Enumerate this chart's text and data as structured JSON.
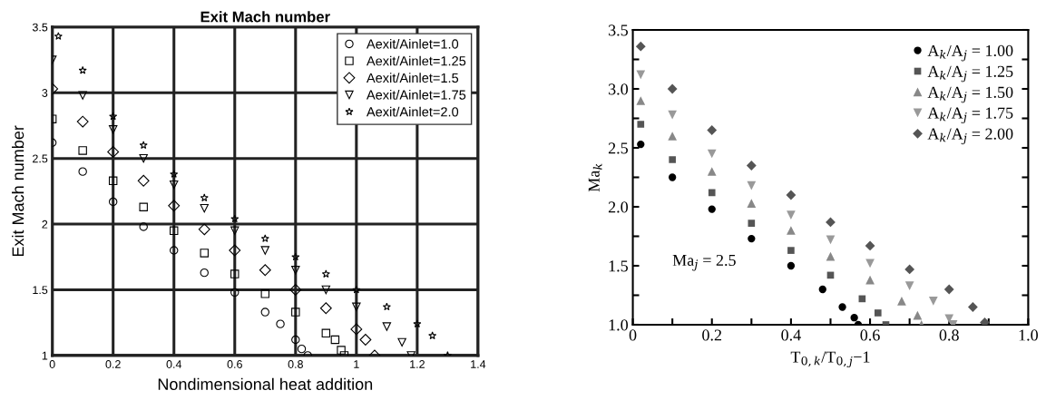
{
  "chart_data": [
    {
      "type": "scatter",
      "title": "Exit Mach number",
      "xlabel": "Nondimensional heat addition",
      "ylabel": "Exit Mach number",
      "xlim": [
        0,
        1.4
      ],
      "xticks": [
        0,
        0.2,
        0.4,
        0.6,
        0.8,
        1,
        1.2,
        1.4
      ],
      "ylim": [
        1,
        3.5
      ],
      "yticks": [
        1,
        1.5,
        2,
        2.5,
        3,
        3.5
      ],
      "grid": true,
      "legend": "top right",
      "series": [
        {
          "name": "Aexit/Ainlet=1.0",
          "color": "#000000",
          "marker": "circle",
          "x": [
            0,
            0.1,
            0.2,
            0.3,
            0.4,
            0.5,
            0.6,
            0.7,
            0.75,
            0.8,
            0.82,
            0.84
          ],
          "values": [
            2.62,
            2.4,
            2.17,
            1.98,
            1.8,
            1.63,
            1.48,
            1.33,
            1.24,
            1.12,
            1.05,
            1.0
          ]
        },
        {
          "name": "Aexit/Ainlet=1.25",
          "color": "#000000",
          "marker": "square",
          "x": [
            0,
            0.1,
            0.2,
            0.3,
            0.4,
            0.5,
            0.6,
            0.7,
            0.8,
            0.9,
            0.93,
            0.95,
            0.96
          ],
          "values": [
            2.8,
            2.56,
            2.33,
            2.13,
            1.95,
            1.78,
            1.62,
            1.47,
            1.33,
            1.17,
            1.12,
            1.04,
            1.0
          ]
        },
        {
          "name": "Aexit/Ainlet=1.5",
          "color": "#000000",
          "marker": "diamond",
          "x": [
            0,
            0.1,
            0.2,
            0.3,
            0.4,
            0.5,
            0.6,
            0.7,
            0.8,
            0.9,
            1.0,
            1.03,
            1.06
          ],
          "values": [
            3.03,
            2.78,
            2.55,
            2.33,
            2.14,
            1.96,
            1.8,
            1.65,
            1.5,
            1.36,
            1.2,
            1.12,
            1.0
          ]
        },
        {
          "name": "Aexit/Ainlet=1.75",
          "color": "#000000",
          "marker": "triangle_down",
          "x": [
            0,
            0.1,
            0.2,
            0.3,
            0.4,
            0.5,
            0.6,
            0.7,
            0.8,
            0.9,
            1.0,
            1.1,
            1.15,
            1.18
          ],
          "values": [
            3.25,
            2.98,
            2.72,
            2.5,
            2.3,
            2.12,
            1.95,
            1.8,
            1.65,
            1.5,
            1.37,
            1.22,
            1.1,
            1.0
          ]
        },
        {
          "name": "Aexit/Ainlet=2.0",
          "color": "#000000",
          "marker": "star",
          "x": [
            0.02,
            0.1,
            0.2,
            0.3,
            0.4,
            0.5,
            0.6,
            0.7,
            0.8,
            0.9,
            1.0,
            1.1,
            1.2,
            1.25,
            1.3
          ],
          "values": [
            3.43,
            3.17,
            2.82,
            2.6,
            2.38,
            2.2,
            2.04,
            1.89,
            1.75,
            1.62,
            1.5,
            1.37,
            1.24,
            1.15,
            1.0
          ]
        }
      ]
    },
    {
      "type": "scatter",
      "xlabel": "T$_{0,k}$/T$_{0,j}$−1",
      "ylabel": "Ma$_{k}$",
      "xlim": [
        0,
        1.0
      ],
      "xticks": [
        0,
        {
          "value": 0.1,
          "label": null
        },
        0.2,
        {
          "value": 0.3,
          "label": null
        },
        0.4,
        {
          "value": 0.5,
          "label": null
        },
        0.6,
        {
          "value": 0.7,
          "label": null
        },
        0.8,
        {
          "value": 0.9,
          "label": null
        },
        {
          "value": 1.0,
          "label": "1.0"
        }
      ],
      "ylim": [
        1,
        3.5
      ],
      "yticks": [
        {
          "value": 1,
          "label": "1.0"
        },
        {
          "value": 1.25,
          "label": null
        },
        1.5,
        {
          "value": 1.75,
          "label": null
        },
        {
          "value": 2,
          "label": "2.0"
        },
        {
          "value": 2.25,
          "label": null
        },
        2.5,
        {
          "value": 2.75,
          "label": null
        },
        {
          "value": 3,
          "label": "3.0"
        },
        {
          "value": 3.25,
          "label": null
        },
        3.5
      ],
      "grid": false,
      "legend": "top right",
      "annotations": [
        "Ma$_{j}$ = 2.5"
      ],
      "series": [
        {
          "name": "A$_{k}$/A$_{j}$ = 1.00",
          "color": "#000000",
          "marker": "circle",
          "x": [
            0.02,
            0.1,
            0.2,
            0.3,
            0.4,
            0.48,
            0.53,
            0.56,
            0.57
          ],
          "values": [
            2.53,
            2.25,
            1.98,
            1.73,
            1.5,
            1.3,
            1.15,
            1.06,
            1.0
          ]
        },
        {
          "name": "A$_{k}$/A$_{j}$ = 1.25",
          "color": "#555555",
          "marker": "square",
          "x": [
            0.02,
            0.1,
            0.2,
            0.3,
            0.4,
            0.5,
            0.58,
            0.62,
            0.64
          ],
          "values": [
            2.7,
            2.4,
            2.12,
            1.86,
            1.63,
            1.42,
            1.22,
            1.1,
            1.0
          ]
        },
        {
          "name": "A$_{k}$/A$_{j}$ = 1.50",
          "color": "#888888",
          "marker": "triangle",
          "x": [
            0.02,
            0.1,
            0.2,
            0.3,
            0.4,
            0.5,
            0.6,
            0.68,
            0.72,
            0.73
          ],
          "values": [
            2.9,
            2.6,
            2.3,
            2.03,
            1.8,
            1.58,
            1.38,
            1.2,
            1.08,
            1.0
          ]
        },
        {
          "name": "A$_{k}$/A$_{j}$ = 1.75",
          "color": "#999999",
          "marker": "triangle_down",
          "x": [
            0.02,
            0.1,
            0.2,
            0.3,
            0.4,
            0.5,
            0.6,
            0.7,
            0.76,
            0.8,
            0.81
          ],
          "values": [
            3.12,
            2.78,
            2.45,
            2.18,
            1.93,
            1.72,
            1.52,
            1.33,
            1.2,
            1.05,
            1.0
          ]
        },
        {
          "name": "A$_{k}$/A$_{j}$ = 2.00",
          "color": "#555555",
          "marker": "diamond",
          "x": [
            0.02,
            0.1,
            0.2,
            0.3,
            0.4,
            0.5,
            0.6,
            0.7,
            0.8,
            0.86,
            0.89
          ],
          "values": [
            3.36,
            3.0,
            2.65,
            2.35,
            2.1,
            1.87,
            1.67,
            1.47,
            1.3,
            1.15,
            1.02
          ]
        }
      ]
    }
  ]
}
